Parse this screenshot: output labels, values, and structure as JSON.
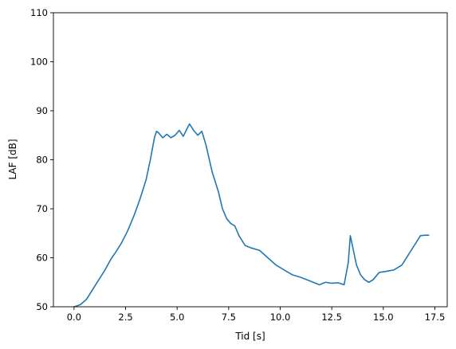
{
  "chart_data": {
    "type": "line",
    "title": "",
    "xlabel": "Tid [s]",
    "ylabel": "LAF [dB]",
    "xlim": [
      -1.0,
      18.1
    ],
    "ylim": [
      50,
      110
    ],
    "x_ticks": [
      0.0,
      2.5,
      5.0,
      7.5,
      10.0,
      12.5,
      15.0,
      17.5
    ],
    "x_tick_labels": [
      "0.0",
      "2.5",
      "5.0",
      "7.5",
      "10.0",
      "12.5",
      "15.0",
      "17.5"
    ],
    "y_ticks": [
      50,
      60,
      70,
      80,
      90,
      100,
      110
    ],
    "y_tick_labels": [
      "50",
      "60",
      "70",
      "80",
      "90",
      "100",
      "110"
    ],
    "grid": false,
    "legend": "none",
    "series": [
      {
        "color": "#1f77b4",
        "x": [
          0.0,
          0.3,
          0.6,
          0.9,
          1.2,
          1.5,
          1.8,
          2.0,
          2.3,
          2.6,
          2.9,
          3.2,
          3.5,
          3.7,
          3.9,
          4.0,
          4.1,
          4.3,
          4.5,
          4.7,
          4.9,
          5.1,
          5.3,
          5.5,
          5.6,
          5.8,
          6.0,
          6.2,
          6.4,
          6.7,
          7.0,
          7.2,
          7.4,
          7.6,
          7.8,
          8.0,
          8.3,
          8.6,
          9.0,
          9.4,
          9.8,
          10.2,
          10.6,
          11.0,
          11.3,
          11.6,
          11.9,
          12.2,
          12.5,
          12.8,
          13.1,
          13.3,
          13.4,
          13.5,
          13.7,
          13.9,
          14.1,
          14.3,
          14.5,
          14.8,
          15.1,
          15.5,
          15.9,
          16.2,
          16.5,
          16.8,
          17.0,
          17.2
        ],
        "y": [
          50.0,
          50.4,
          51.5,
          53.5,
          55.5,
          57.5,
          59.8,
          61.0,
          63.0,
          65.5,
          68.5,
          72.0,
          76.0,
          80.0,
          84.5,
          85.8,
          85.5,
          84.5,
          85.2,
          84.5,
          85.0,
          86.0,
          84.8,
          86.5,
          87.3,
          86.0,
          85.0,
          85.8,
          83.0,
          77.5,
          73.5,
          70.0,
          68.0,
          67.0,
          66.5,
          64.5,
          62.5,
          62.0,
          61.5,
          60.0,
          58.5,
          57.5,
          56.5,
          56.0,
          55.5,
          55.0,
          54.5,
          55.0,
          54.8,
          54.9,
          54.5,
          59.0,
          64.5,
          62.5,
          58.5,
          56.5,
          55.5,
          55.0,
          55.5,
          57.0,
          57.2,
          57.5,
          58.5,
          60.5,
          62.5,
          64.5,
          64.6,
          64.6
        ]
      }
    ]
  }
}
